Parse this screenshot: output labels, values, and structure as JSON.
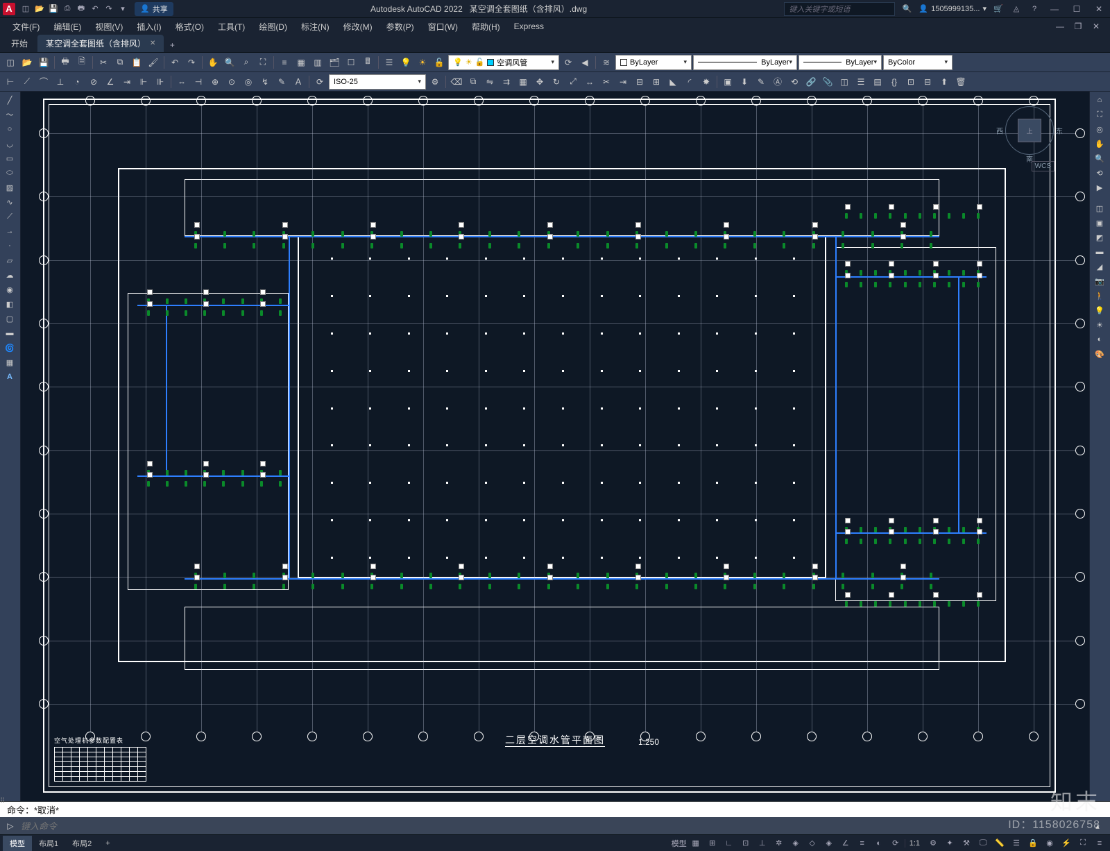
{
  "app": {
    "name": "Autodesk AutoCAD 2022",
    "doc": "某空调全套图纸（含排风）.dwg",
    "logo_letter": "A",
    "logo_bg": "#c8102e"
  },
  "qat_icons": [
    "new",
    "open",
    "save",
    "saveas",
    "print",
    "undo",
    "redo",
    "plot",
    "sep",
    "arrow"
  ],
  "share_label": "共享",
  "search_placeholder": "键入关键字或短语",
  "user": {
    "icon": "person",
    "name": "1505999135...",
    "cart": "cart",
    "help": "help"
  },
  "window_btns": [
    "min",
    "max",
    "close"
  ],
  "menus": [
    "文件(F)",
    "编辑(E)",
    "视图(V)",
    "插入(I)",
    "格式(O)",
    "工具(T)",
    "绘图(D)",
    "标注(N)",
    "修改(M)",
    "参数(P)",
    "窗口(W)",
    "帮助(H)",
    "Express"
  ],
  "filetabs": {
    "start": "开始",
    "active": "某空调全套图纸（含排风）",
    "plus": "+"
  },
  "toolbar1": {
    "groups": [
      [
        "new",
        "open",
        "save",
        "print"
      ],
      [
        "cut",
        "copy",
        "paste",
        "match"
      ],
      [
        "undo",
        "redo"
      ],
      [
        "pan",
        "zoom-ext",
        "zoom-win",
        "zoom-prev"
      ],
      [
        "props",
        "design-center",
        "tool-pal",
        "sheet",
        "calc",
        "markup"
      ],
      [
        "layer-mgr",
        "layer-prev"
      ]
    ],
    "layer_state_icons": [
      "on",
      "freeze",
      "lock",
      "color"
    ],
    "current_layer": "空调风管",
    "current_layer_color": "#00d0ff",
    "bylayer_color": "ByLayer",
    "bylayer_color_sw": "#ffffff",
    "bylayer_ltype": "ByLayer",
    "bylayer_lweight": "ByLayer",
    "bycolor": "ByColor"
  },
  "toolbar2": {
    "groups": [
      [
        "line",
        "pline",
        "circle",
        "arc",
        "rect",
        "ellipse",
        "hatch",
        "spline"
      ],
      [
        "dim-lin",
        "dim-ali",
        "dim-ang",
        "dim-rad",
        "dim-dia",
        "dim-ord",
        "dim-cont",
        "dim-base",
        "leader",
        "tol",
        "center"
      ]
    ],
    "dim_style": "ISO-25",
    "right_groups": [
      [
        "move",
        "copy",
        "rotate",
        "mirror",
        "offset",
        "array",
        "scale",
        "stretch",
        "trim",
        "extend",
        "break",
        "join",
        "chamfer",
        "fillet",
        "explode"
      ],
      [
        "block",
        "insert",
        "edit-attr",
        "xref",
        "sync",
        "ext-ref",
        "table",
        "field",
        "group",
        "ungroup",
        "wblock",
        "purge",
        "audit"
      ]
    ]
  },
  "left_tools": [
    "line",
    "pline",
    "circle",
    "arc",
    "rect",
    "hatch",
    "ellipse",
    "spline",
    "point",
    "region",
    "text",
    "sep",
    "mtext",
    "table",
    "sep",
    "xline",
    "ray",
    "donut",
    "revcloud",
    "sep",
    "helix"
  ],
  "left_tools2": [
    "A"
  ],
  "right_panel": [
    "home",
    "visual",
    "nav",
    "sep",
    "pan",
    "orbit",
    "zoom",
    "sep",
    "steering",
    "showm",
    "sep",
    "render",
    "sun",
    "sep",
    "mat",
    "mapping",
    "sep",
    "section",
    "flatshot"
  ],
  "viewcube": {
    "top": "上",
    "w": "西",
    "e": "东",
    "s": "南",
    "wcs": "WCS"
  },
  "drawing": {
    "title": "二层空调水管平面图",
    "scale": "1:250",
    "param_table_title": "空气处理机参数配置表",
    "border_color": "#ffffff",
    "bg": "#0e1826",
    "pipe_color": "#2e7fff",
    "tag_color": "#0a8a2a",
    "grid_cols": 17,
    "grid_rows": 9,
    "atrium_cols": 13,
    "atrium_rows": 9
  },
  "cmd": {
    "history": "命令：*取消*",
    "prompt_icon": ">",
    "placeholder": "键入命令"
  },
  "layouts": {
    "model": "模型",
    "l1": "布局1",
    "l2": "布局2",
    "plus": "+"
  },
  "status": {
    "left_btns": [
      "model",
      "grid",
      "snap",
      "infer",
      "dyn",
      "ortho",
      "polar",
      "iso",
      "osnap",
      "3dosnap",
      "otrack",
      "ducs",
      "dyn-inp",
      "lwt",
      "trans",
      "cycle",
      "sep",
      "ann-mon",
      "ann-scale"
    ],
    "scale": "1:1",
    "right_btns": [
      "gear",
      "ann-vis",
      "ws",
      "monitor",
      "units",
      "qp",
      "lock",
      "iso2",
      "hw",
      "clean",
      "cust"
    ],
    "menu": "≡"
  },
  "watermark": {
    "logo": "知末",
    "id": "ID：1158026758"
  }
}
